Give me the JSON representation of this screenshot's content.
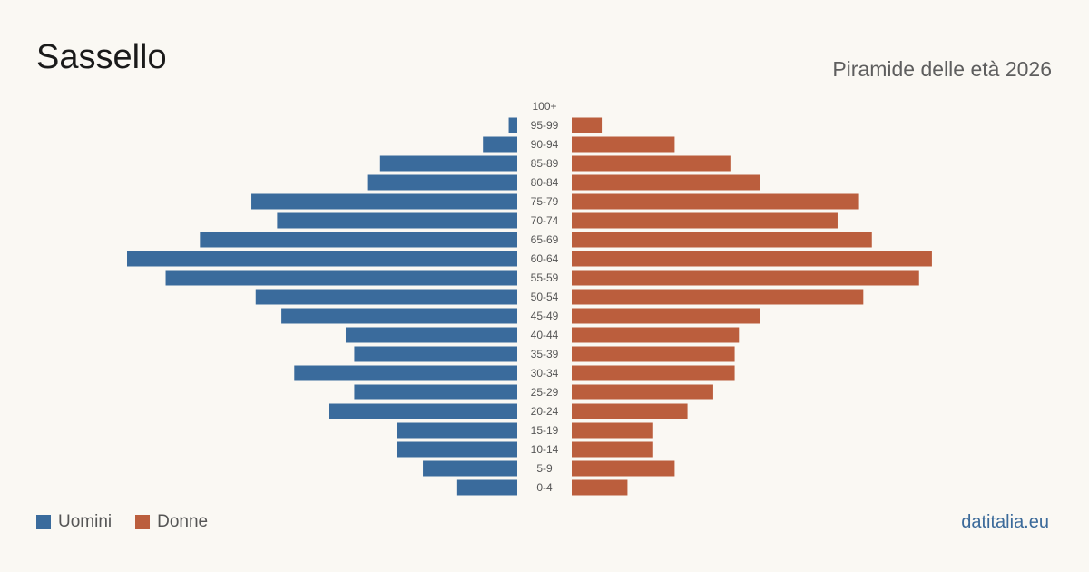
{
  "header": {
    "title": "Sassello",
    "subtitle": "Piramide delle età 2026"
  },
  "legend": {
    "men_label": "Uomini",
    "women_label": "Donne"
  },
  "source": "datitalia.eu",
  "colors": {
    "men": "#3a6b9c",
    "women": "#bb5e3d",
    "background": "#faf8f3"
  },
  "chart_data": {
    "type": "bar",
    "orientation": "horizontal-pyramid",
    "categories": [
      "100+",
      "95-99",
      "90-94",
      "85-89",
      "80-84",
      "75-79",
      "70-74",
      "65-69",
      "60-64",
      "55-59",
      "50-54",
      "45-49",
      "40-44",
      "35-39",
      "30-34",
      "25-29",
      "20-24",
      "15-19",
      "10-14",
      "5-9",
      "0-4"
    ],
    "series": [
      {
        "name": "Uomini",
        "values": [
          0,
          2,
          8,
          32,
          35,
          62,
          56,
          74,
          91,
          82,
          61,
          55,
          40,
          38,
          52,
          38,
          44,
          28,
          28,
          22,
          14
        ]
      },
      {
        "name": "Donne",
        "values": [
          0,
          7,
          24,
          37,
          44,
          67,
          62,
          70,
          84,
          81,
          68,
          44,
          39,
          38,
          38,
          33,
          27,
          19,
          19,
          24,
          13
        ]
      }
    ],
    "grid": false,
    "legend_position": "bottom-left"
  }
}
